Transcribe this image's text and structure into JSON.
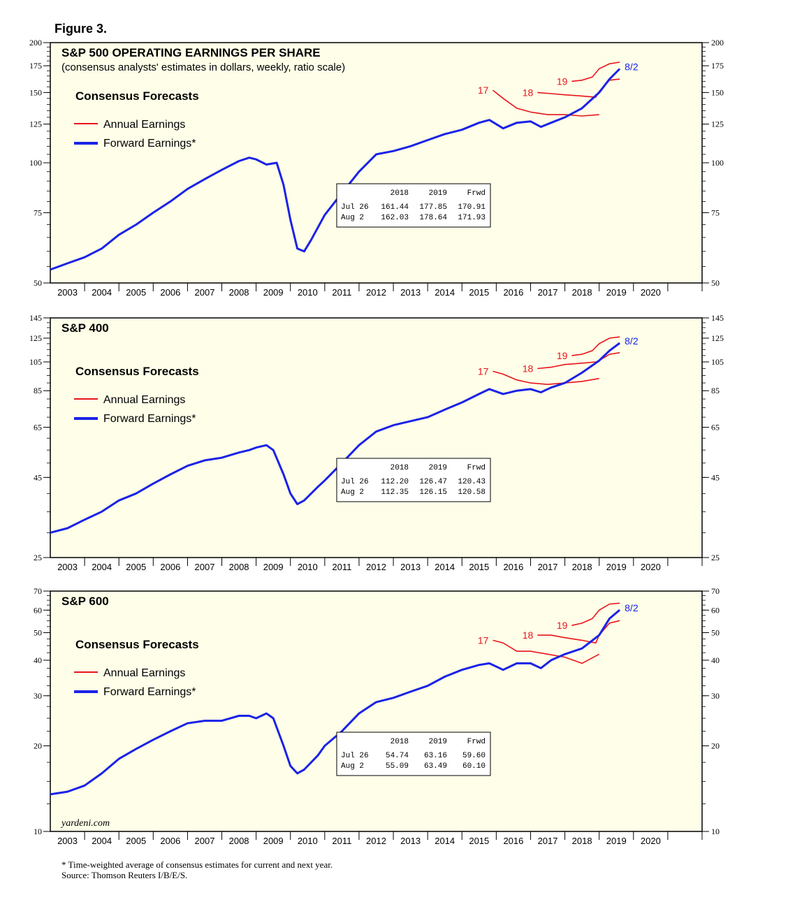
{
  "figure_title": "Figure 3.",
  "footnote": "* Time-weighted average of consensus estimates for current and next year.",
  "source": "Source: Thomson Reuters I/B/E/S.",
  "watermark": "yardeni.com",
  "colors": {
    "annual": "#e8141a",
    "forward": "#1a22e8",
    "background": "#fffee8"
  },
  "chart_data": [
    {
      "type": "line",
      "title": "S&P 500 OPERATING EARNINGS PER SHARE",
      "subtitle": "(consensus analysts' estimates in dollars, weekly, ratio scale)",
      "y_scale": "log",
      "ylim": [
        50,
        200
      ],
      "y_ticks": [
        50,
        75,
        100,
        125,
        150,
        175,
        200
      ],
      "x_ticks": [
        "2003",
        "2004",
        "2005",
        "2006",
        "2007",
        "2008",
        "2009",
        "2010",
        "2011",
        "2012",
        "2013",
        "2014",
        "2015",
        "2016",
        "2017",
        "2018",
        "2019",
        "2020"
      ],
      "xlim": [
        2002.0,
        2021.0
      ],
      "legend": {
        "title": "Consensus Forecasts",
        "annual_label": "Annual Earnings",
        "forward_label": "Forward Earnings*",
        "position": "top-left"
      },
      "forward": {
        "name": "Forward Earnings*",
        "end_label": "8/2",
        "points": [
          [
            2002.0,
            54
          ],
          [
            2002.5,
            56
          ],
          [
            2003.0,
            58
          ],
          [
            2003.5,
            61
          ],
          [
            2004.0,
            66
          ],
          [
            2004.5,
            70
          ],
          [
            2005.0,
            75
          ],
          [
            2005.5,
            80
          ],
          [
            2006.0,
            86
          ],
          [
            2006.5,
            91
          ],
          [
            2007.0,
            96
          ],
          [
            2007.5,
            101
          ],
          [
            2007.8,
            103
          ],
          [
            2008.0,
            102
          ],
          [
            2008.3,
            99
          ],
          [
            2008.6,
            100
          ],
          [
            2008.8,
            88
          ],
          [
            2009.0,
            72
          ],
          [
            2009.2,
            61
          ],
          [
            2009.4,
            60
          ],
          [
            2009.6,
            64
          ],
          [
            2010.0,
            74
          ],
          [
            2010.5,
            84
          ],
          [
            2011.0,
            95
          ],
          [
            2011.5,
            105
          ],
          [
            2012.0,
            107
          ],
          [
            2012.5,
            110
          ],
          [
            2013.0,
            114
          ],
          [
            2013.5,
            118
          ],
          [
            2014.0,
            121
          ],
          [
            2014.5,
            126
          ],
          [
            2014.8,
            128
          ],
          [
            2015.2,
            122
          ],
          [
            2015.6,
            126
          ],
          [
            2016.0,
            127
          ],
          [
            2016.3,
            123
          ],
          [
            2016.6,
            126
          ],
          [
            2017.0,
            130
          ],
          [
            2017.5,
            137
          ],
          [
            2018.0,
            150
          ],
          [
            2018.3,
            162
          ],
          [
            2018.6,
            171.93
          ]
        ]
      },
      "annual": [
        {
          "name": "17",
          "points": [
            [
              2014.9,
              152
            ],
            [
              2015.2,
              145
            ],
            [
              2015.6,
              137
            ],
            [
              2016.0,
              134
            ],
            [
              2016.5,
              132
            ],
            [
              2017.0,
              132
            ],
            [
              2017.5,
              131
            ],
            [
              2018.0,
              132
            ]
          ]
        },
        {
          "name": "18",
          "points": [
            [
              2016.2,
              150
            ],
            [
              2016.6,
              149
            ],
            [
              2017.0,
              148
            ],
            [
              2017.5,
              147
            ],
            [
              2017.9,
              146
            ],
            [
              2018.0,
              151
            ],
            [
              2018.3,
              161
            ],
            [
              2018.6,
              162.03
            ]
          ]
        },
        {
          "name": "19",
          "points": [
            [
              2017.2,
              160
            ],
            [
              2017.5,
              161
            ],
            [
              2017.8,
              164
            ],
            [
              2018.0,
              172
            ],
            [
              2018.3,
              177
            ],
            [
              2018.6,
              178.64
            ]
          ]
        }
      ],
      "table": {
        "headers": [
          "2018",
          "2019",
          "Frwd"
        ],
        "rows": [
          {
            "date": "Jul 26",
            "values": [
              "161.44",
              "177.85",
              "170.91"
            ]
          },
          {
            "date": "Aug  2",
            "values": [
              "162.03",
              "178.64",
              "171.93"
            ]
          }
        ]
      }
    },
    {
      "type": "line",
      "title": "S&P 400",
      "subtitle": "",
      "y_scale": "log",
      "ylim": [
        25,
        145
      ],
      "y_ticks": [
        25,
        45,
        65,
        85,
        105,
        125,
        145
      ],
      "x_ticks": [
        "2003",
        "2004",
        "2005",
        "2006",
        "2007",
        "2008",
        "2009",
        "2010",
        "2011",
        "2012",
        "2013",
        "2014",
        "2015",
        "2016",
        "2017",
        "2018",
        "2019",
        "2020"
      ],
      "xlim": [
        2002.0,
        2021.0
      ],
      "legend": {
        "title": "Consensus Forecasts",
        "annual_label": "Annual Earnings",
        "forward_label": "Forward Earnings*",
        "position": "top-left"
      },
      "forward": {
        "name": "Forward Earnings*",
        "end_label": "8/2",
        "points": [
          [
            2002.0,
            30
          ],
          [
            2002.5,
            31
          ],
          [
            2003.0,
            33
          ],
          [
            2003.5,
            35
          ],
          [
            2004.0,
            38
          ],
          [
            2004.5,
            40
          ],
          [
            2005.0,
            43
          ],
          [
            2005.5,
            46
          ],
          [
            2006.0,
            49
          ],
          [
            2006.5,
            51
          ],
          [
            2007.0,
            52
          ],
          [
            2007.5,
            54
          ],
          [
            2007.8,
            55
          ],
          [
            2008.0,
            56
          ],
          [
            2008.3,
            57
          ],
          [
            2008.5,
            55
          ],
          [
            2008.8,
            46
          ],
          [
            2009.0,
            40
          ],
          [
            2009.2,
            37
          ],
          [
            2009.4,
            38
          ],
          [
            2009.8,
            42
          ],
          [
            2010.0,
            44
          ],
          [
            2010.5,
            50
          ],
          [
            2011.0,
            57
          ],
          [
            2011.5,
            63
          ],
          [
            2012.0,
            66
          ],
          [
            2012.5,
            68
          ],
          [
            2013.0,
            70
          ],
          [
            2013.5,
            74
          ],
          [
            2014.0,
            78
          ],
          [
            2014.5,
            83
          ],
          [
            2014.8,
            86
          ],
          [
            2015.2,
            83
          ],
          [
            2015.6,
            85
          ],
          [
            2016.0,
            86
          ],
          [
            2016.3,
            84
          ],
          [
            2016.6,
            87
          ],
          [
            2017.0,
            90
          ],
          [
            2017.5,
            97
          ],
          [
            2018.0,
            106
          ],
          [
            2018.3,
            114
          ],
          [
            2018.6,
            120.58
          ]
        ]
      },
      "annual": [
        {
          "name": "17",
          "points": [
            [
              2014.9,
              98
            ],
            [
              2015.2,
              96
            ],
            [
              2015.6,
              92
            ],
            [
              2016.0,
              90
            ],
            [
              2016.5,
              89
            ],
            [
              2017.0,
              90
            ],
            [
              2017.5,
              91
            ],
            [
              2018.0,
              93
            ]
          ]
        },
        {
          "name": "18",
          "points": [
            [
              2016.2,
              100
            ],
            [
              2016.6,
              101
            ],
            [
              2017.0,
              103
            ],
            [
              2017.5,
              104
            ],
            [
              2017.9,
              105
            ],
            [
              2018.0,
              106
            ],
            [
              2018.3,
              111
            ],
            [
              2018.6,
              112.35
            ]
          ]
        },
        {
          "name": "19",
          "points": [
            [
              2017.2,
              110
            ],
            [
              2017.5,
              111
            ],
            [
              2017.8,
              114
            ],
            [
              2018.0,
              120
            ],
            [
              2018.3,
              125
            ],
            [
              2018.6,
              126.15
            ]
          ]
        }
      ],
      "table": {
        "headers": [
          "2018",
          "2019",
          "Frwd"
        ],
        "rows": [
          {
            "date": "Jul 26",
            "values": [
              "112.20",
              "126.47",
              "120.43"
            ]
          },
          {
            "date": "Aug  2",
            "values": [
              "112.35",
              "126.15",
              "120.58"
            ]
          }
        ]
      }
    },
    {
      "type": "line",
      "title": "S&P 600",
      "subtitle": "",
      "y_scale": "log",
      "ylim": [
        10,
        70
      ],
      "y_ticks": [
        10,
        20,
        30,
        40,
        50,
        60,
        70
      ],
      "x_ticks": [
        "2003",
        "2004",
        "2005",
        "2006",
        "2007",
        "2008",
        "2009",
        "2010",
        "2011",
        "2012",
        "2013",
        "2014",
        "2015",
        "2016",
        "2017",
        "2018",
        "2019",
        "2020"
      ],
      "xlim": [
        2002.0,
        2021.0
      ],
      "legend": {
        "title": "Consensus Forecasts",
        "annual_label": "Annual Earnings",
        "forward_label": "Forward Earnings*",
        "position": "top-left"
      },
      "forward": {
        "name": "Forward Earnings*",
        "end_label": "8/2",
        "points": [
          [
            2002.0,
            13.5
          ],
          [
            2002.5,
            13.8
          ],
          [
            2003.0,
            14.5
          ],
          [
            2003.5,
            16
          ],
          [
            2004.0,
            18
          ],
          [
            2004.5,
            19.5
          ],
          [
            2005.0,
            21
          ],
          [
            2005.5,
            22.5
          ],
          [
            2006.0,
            24
          ],
          [
            2006.5,
            24.5
          ],
          [
            2007.0,
            24.5
          ],
          [
            2007.5,
            25.5
          ],
          [
            2007.8,
            25.5
          ],
          [
            2008.0,
            25
          ],
          [
            2008.3,
            26
          ],
          [
            2008.5,
            25
          ],
          [
            2008.8,
            20
          ],
          [
            2009.0,
            17
          ],
          [
            2009.2,
            16
          ],
          [
            2009.4,
            16.5
          ],
          [
            2009.8,
            18.5
          ],
          [
            2010.0,
            20
          ],
          [
            2010.5,
            22.5
          ],
          [
            2011.0,
            26
          ],
          [
            2011.5,
            28.5
          ],
          [
            2012.0,
            29.5
          ],
          [
            2012.5,
            31
          ],
          [
            2013.0,
            32.5
          ],
          [
            2013.5,
            35
          ],
          [
            2014.0,
            37
          ],
          [
            2014.5,
            38.5
          ],
          [
            2014.8,
            39
          ],
          [
            2015.2,
            37
          ],
          [
            2015.6,
            39
          ],
          [
            2016.0,
            39
          ],
          [
            2016.3,
            37.5
          ],
          [
            2016.6,
            40
          ],
          [
            2017.0,
            42
          ],
          [
            2017.5,
            44
          ],
          [
            2018.0,
            49
          ],
          [
            2018.3,
            56
          ],
          [
            2018.6,
            60.1
          ]
        ]
      },
      "annual": [
        {
          "name": "17",
          "points": [
            [
              2014.9,
              47
            ],
            [
              2015.2,
              46
            ],
            [
              2015.6,
              43
            ],
            [
              2016.0,
              43
            ],
            [
              2016.5,
              42
            ],
            [
              2017.0,
              41
            ],
            [
              2017.5,
              39
            ],
            [
              2018.0,
              42
            ]
          ]
        },
        {
          "name": "18",
          "points": [
            [
              2016.2,
              49
            ],
            [
              2016.6,
              49
            ],
            [
              2017.0,
              48
            ],
            [
              2017.5,
              47
            ],
            [
              2017.9,
              46
            ],
            [
              2018.0,
              49
            ],
            [
              2018.3,
              54
            ],
            [
              2018.6,
              55.09
            ]
          ]
        },
        {
          "name": "19",
          "points": [
            [
              2017.2,
              53
            ],
            [
              2017.5,
              54
            ],
            [
              2017.8,
              56
            ],
            [
              2018.0,
              60
            ],
            [
              2018.3,
              63
            ],
            [
              2018.6,
              63.49
            ]
          ]
        }
      ],
      "table": {
        "headers": [
          "2018",
          "2019",
          "Frwd"
        ],
        "rows": [
          {
            "date": "Jul 26",
            "values": [
              "54.74",
              "63.16",
              "59.60"
            ]
          },
          {
            "date": "Aug  2",
            "values": [
              "55.09",
              "63.49",
              "60.10"
            ]
          }
        ]
      }
    }
  ]
}
